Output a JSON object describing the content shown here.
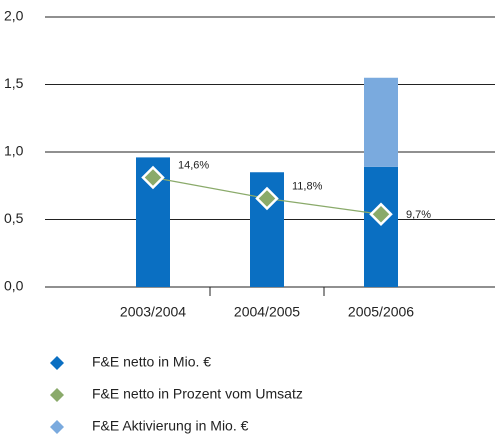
{
  "chart_data": {
    "type": "bar",
    "stacked": true,
    "categories": [
      "2003/2004",
      "2004/2005",
      "2005/2006"
    ],
    "series": [
      {
        "name": "F&E netto in Mio. €",
        "color": "#0a6fc2",
        "values": [
          0.96,
          0.85,
          0.89
        ]
      },
      {
        "name": "F&E netto in Prozent vom Umsatz",
        "color": "#8aaa6a",
        "type": "line",
        "axis": "y2",
        "values": [
          14.6,
          11.8,
          9.7
        ],
        "value_labels": [
          "14,6%",
          "11,8%",
          "9,7%"
        ]
      },
      {
        "name": "F&E Aktivierung in Mio. €",
        "color": "#7aaade",
        "values": [
          null,
          null,
          0.66
        ]
      }
    ],
    "ylim": [
      0,
      2
    ],
    "yticks": [
      {
        "value": 0,
        "label": "0,0"
      },
      {
        "value": 0.5,
        "label": "0,5"
      },
      {
        "value": 1,
        "label": "1,0"
      },
      {
        "value": 1.5,
        "label": "1,5"
      },
      {
        "value": 2,
        "label": "2,0"
      }
    ],
    "y2lim": [
      0,
      36
    ],
    "grid": true
  }
}
